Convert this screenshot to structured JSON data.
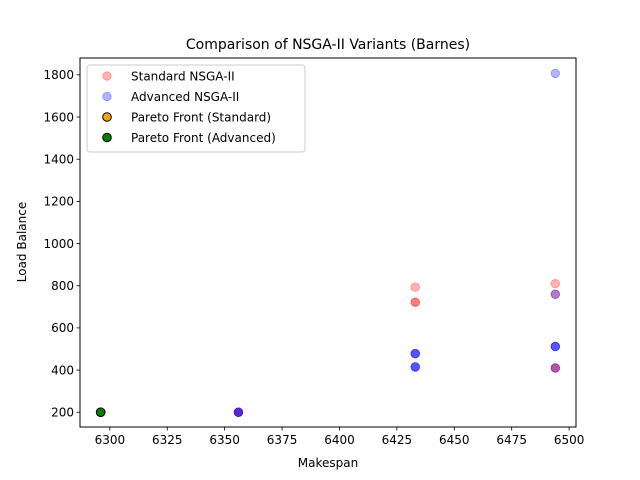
{
  "chart_data": {
    "type": "scatter",
    "title": "Comparison of NSGA-II Variants (Barnes)",
    "xlabel": "Makespan",
    "ylabel": "Load Balance",
    "xlim": [
      6287,
      6503
    ],
    "ylim": [
      130,
      1880
    ],
    "xticks": [
      6300,
      6325,
      6350,
      6375,
      6400,
      6425,
      6450,
      6475,
      6500
    ],
    "yticks": [
      200,
      400,
      600,
      800,
      1000,
      1200,
      1400,
      1600,
      1800
    ],
    "grid": false,
    "legend": "top-left",
    "series": [
      {
        "name": "Standard NSGA-II",
        "color": "#ff0000",
        "alpha": 0.3,
        "points": [
          {
            "x": 6296,
            "y": 200
          },
          {
            "x": 6296,
            "y": 200
          },
          {
            "x": 6356,
            "y": 200
          },
          {
            "x": 6356,
            "y": 200
          },
          {
            "x": 6433,
            "y": 793
          },
          {
            "x": 6433,
            "y": 722
          },
          {
            "x": 6433,
            "y": 722
          },
          {
            "x": 6494,
            "y": 810
          },
          {
            "x": 6494,
            "y": 760
          },
          {
            "x": 6494,
            "y": 410
          },
          {
            "x": 6494,
            "y": 410
          }
        ]
      },
      {
        "name": "Advanced NSGA-II",
        "color": "#0000ff",
        "alpha": 0.3,
        "points": [
          {
            "x": 6296,
            "y": 200
          },
          {
            "x": 6356,
            "y": 200
          },
          {
            "x": 6356,
            "y": 200
          },
          {
            "x": 6356,
            "y": 200
          },
          {
            "x": 6433,
            "y": 478
          },
          {
            "x": 6433,
            "y": 478
          },
          {
            "x": 6433,
            "y": 478
          },
          {
            "x": 6433,
            "y": 415
          },
          {
            "x": 6433,
            "y": 415
          },
          {
            "x": 6433,
            "y": 415
          },
          {
            "x": 6494,
            "y": 1807
          },
          {
            "x": 6494,
            "y": 760
          },
          {
            "x": 6494,
            "y": 512
          },
          {
            "x": 6494,
            "y": 512
          },
          {
            "x": 6494,
            "y": 512
          },
          {
            "x": 6494,
            "y": 410
          }
        ]
      },
      {
        "name": "Pareto Front (Standard)",
        "color": "#ffa500",
        "alpha": 1,
        "points": [
          {
            "x": 6296,
            "y": 200
          }
        ]
      },
      {
        "name": "Pareto Front (Advanced)",
        "color": "#008000",
        "alpha": 1,
        "points": [
          {
            "x": 6296,
            "y": 200
          }
        ]
      }
    ]
  }
}
